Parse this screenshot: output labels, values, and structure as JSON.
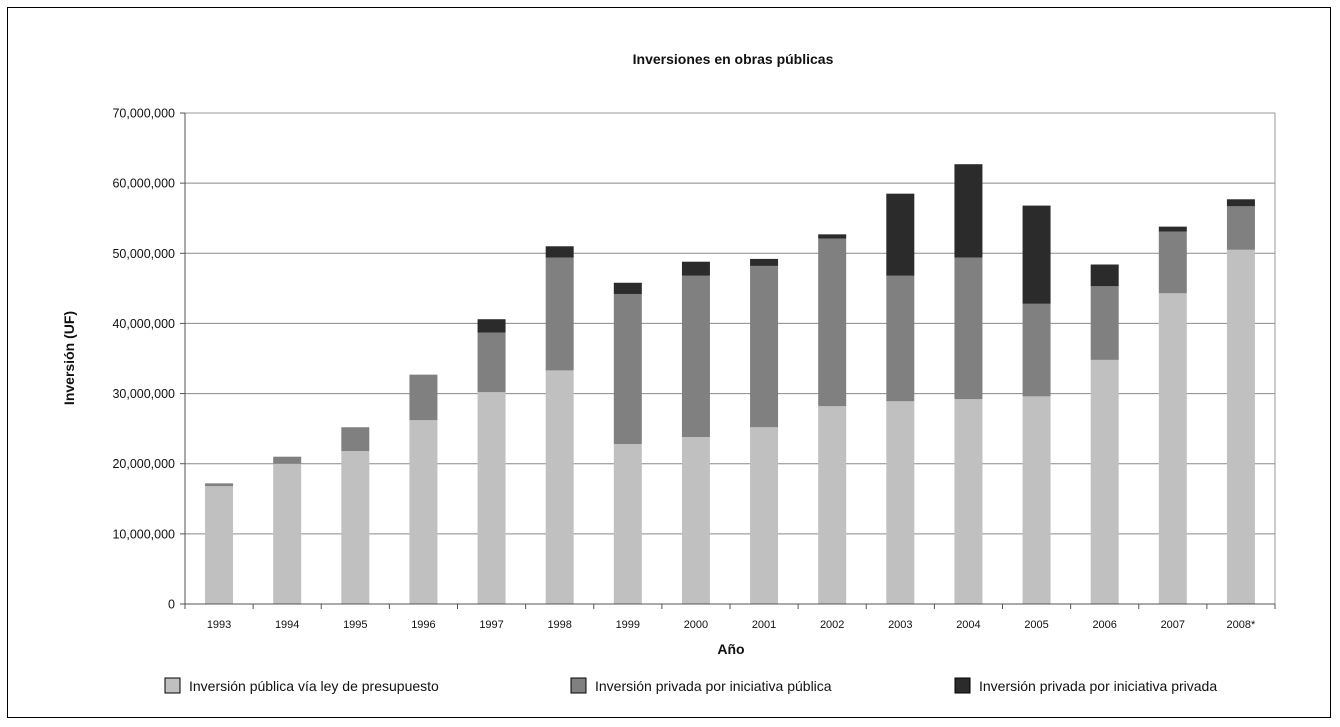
{
  "chart_data": {
    "type": "bar",
    "stacked": true,
    "title": "Inversiones en obras públicas",
    "xlabel": "Año",
    "ylabel": "Inversión (UF)",
    "ylim": [
      0,
      70000000
    ],
    "yticks": [
      0,
      10000000,
      20000000,
      30000000,
      40000000,
      50000000,
      60000000,
      70000000
    ],
    "ytick_labels": [
      "0",
      "10,000,000",
      "20,000,000",
      "30,000,000",
      "40,000,000",
      "50,000,000",
      "60,000,000",
      "70,000,000"
    ],
    "grid": true,
    "legend_position": "bottom",
    "categories": [
      "1993",
      "1994",
      "1995",
      "1996",
      "1997",
      "1998",
      "1999",
      "2000",
      "2001",
      "2002",
      "2003",
      "2004",
      "2005",
      "2006",
      "2007",
      "2008*"
    ],
    "series": [
      {
        "name": "Inversión pública vía ley de presupuesto",
        "color": "#c0c0c0",
        "values": [
          16800000,
          20000000,
          21800000,
          26200000,
          30200000,
          33300000,
          22800000,
          23800000,
          25200000,
          28200000,
          28900000,
          29200000,
          29600000,
          34800000,
          44300000,
          50500000
        ]
      },
      {
        "name": "Inversión privada por iniciativa pública",
        "color": "#808080",
        "values": [
          400000,
          1000000,
          3400000,
          6500000,
          8500000,
          16100000,
          21400000,
          23000000,
          23000000,
          23900000,
          17900000,
          20200000,
          13200000,
          10500000,
          8800000,
          6200000
        ]
      },
      {
        "name": "Inversión privada por iniciativa privada",
        "color": "#2b2b2b",
        "values": [
          0,
          0,
          0,
          0,
          1900000,
          1600000,
          1600000,
          2000000,
          1000000,
          600000,
          11700000,
          13300000,
          14000000,
          3100000,
          700000,
          1000000
        ]
      }
    ]
  }
}
